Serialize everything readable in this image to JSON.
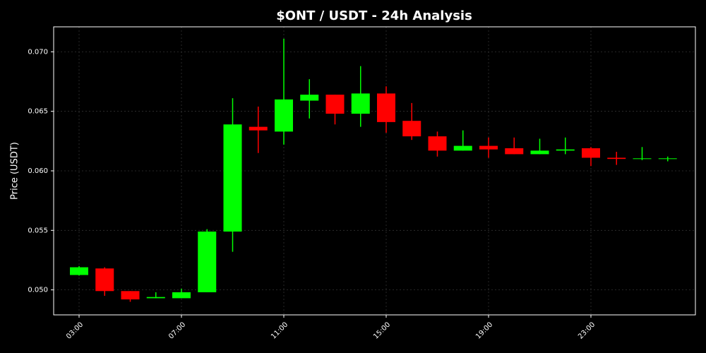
{
  "chart_data": {
    "type": "candlestick",
    "title": "$ONT / USDT - 24h Analysis",
    "y_label": "Price (USDT)",
    "categories": [
      "03:00",
      null,
      null,
      null,
      "07:00",
      null,
      null,
      null,
      "11:00",
      null,
      null,
      null,
      "15:00",
      null,
      null,
      null,
      "19:00",
      null,
      null,
      null,
      "23:00",
      null,
      null,
      null
    ],
    "open": [
      0.05125,
      0.0518,
      0.0499,
      0.0493,
      0.0493,
      0.0498,
      0.0549,
      0.0637,
      0.0633,
      0.0659,
      0.0664,
      0.0648,
      0.0665,
      0.0642,
      0.0629,
      0.0617,
      0.0621,
      0.0619,
      0.0614,
      0.0617,
      0.0619,
      0.0611,
      0.061,
      0.061
    ],
    "high": [
      0.052,
      0.0519,
      0.0499,
      0.0498,
      0.0501,
      0.0551,
      0.0661,
      0.0654,
      0.0711,
      0.0677,
      0.0664,
      0.0688,
      0.0671,
      0.0657,
      0.0633,
      0.0634,
      0.0628,
      0.0628,
      0.0627,
      0.0628,
      0.062,
      0.0616,
      0.062,
      0.0612
    ],
    "low": [
      0.0512,
      0.0495,
      0.049,
      0.0493,
      0.0493,
      0.0498,
      0.0532,
      0.0615,
      0.0622,
      0.0644,
      0.0639,
      0.0637,
      0.0632,
      0.0626,
      0.0612,
      0.0617,
      0.0611,
      0.0614,
      0.0614,
      0.0614,
      0.0604,
      0.0605,
      0.0609,
      0.0608
    ],
    "close": [
      0.0519,
      0.0499,
      0.0492,
      0.0494,
      0.0498,
      0.0549,
      0.0639,
      0.0634,
      0.066,
      0.0664,
      0.0648,
      0.0665,
      0.0641,
      0.0629,
      0.0617,
      0.0621,
      0.0618,
      0.0614,
      0.0617,
      0.0618,
      0.0611,
      0.061,
      0.06105,
      0.06105
    ],
    "up_color": "#00ff00",
    "down_color": "#ff0000",
    "ylim": [
      0.0479,
      0.0721
    ],
    "yticks": [
      {
        "value": 0.05,
        "label": "0.050"
      },
      0.055,
      {
        "value": 0.06,
        "label": "0.060"
      },
      0.065,
      {
        "value": 0.07,
        "label": "0.070"
      }
    ],
    "grid": true
  }
}
